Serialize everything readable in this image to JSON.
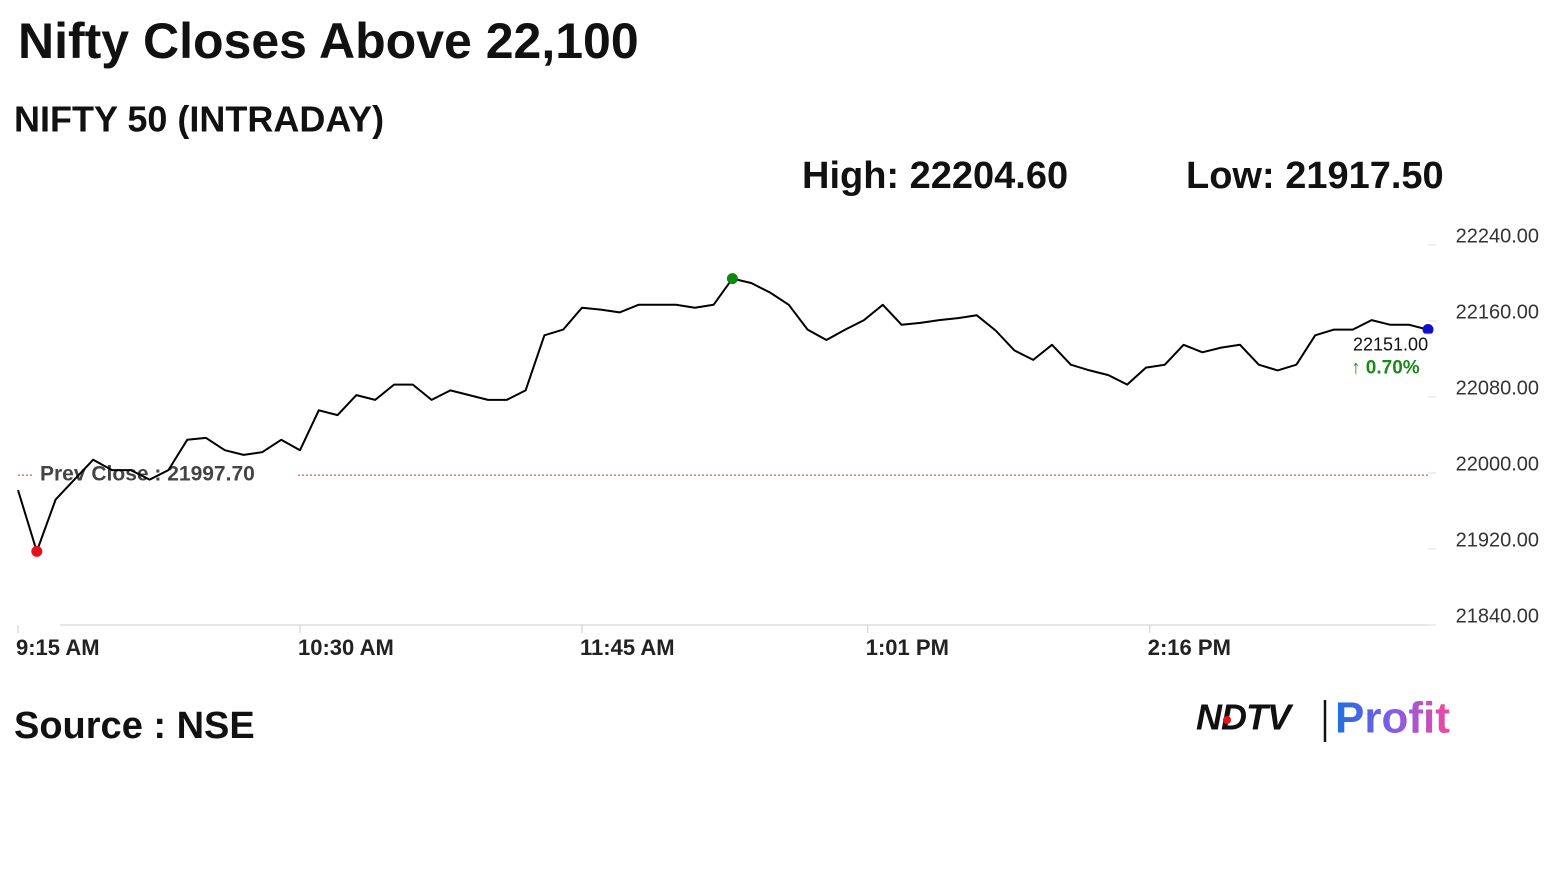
{
  "chart_data": {
    "type": "line",
    "title": "Nifty Closes Above 22,100",
    "subtitle": "NIFTY 50 (INTRADAY)",
    "high_label": "High: 22204.60",
    "low_label": "Low: 21917.50",
    "prev_close": {
      "value": 21997.7,
      "label": "Prev Close : 21997.70"
    },
    "last_label": "22151.00",
    "change_label": "↑ 0.70%",
    "source": "Source : NSE",
    "logo": {
      "brand": "NDTV",
      "product": "Profit"
    },
    "color": "#000000",
    "prev_close_color": "#d62728",
    "high_color": "#0a8a0a",
    "low_color": "#e8101a",
    "last_color": "#1010c8",
    "ylim": [
      21840,
      22240
    ],
    "yticks": [
      {
        "value": 21840,
        "label": "21840.00"
      },
      {
        "value": 21920,
        "label": "21920.00"
      },
      {
        "value": 22000,
        "label": "22000.00"
      },
      {
        "value": 22080,
        "label": "22080.00"
      },
      {
        "value": 22160,
        "label": "22160.00"
      },
      {
        "value": 22240,
        "label": "22240.00"
      }
    ],
    "xlim": [
      "9:15 AM",
      "3:30 PM"
    ],
    "xticks": [
      "9:15 AM",
      "10:30 AM",
      "11:45 AM",
      "1:01 PM",
      "2:16 PM"
    ],
    "x": [
      "9:15 AM",
      "9:20 AM",
      "9:25 AM",
      "9:30 AM",
      "9:35 AM",
      "9:40 AM",
      "9:45 AM",
      "9:50 AM",
      "9:55 AM",
      "10:00 AM",
      "10:05 AM",
      "10:10 AM",
      "10:15 AM",
      "10:20 AM",
      "10:25 AM",
      "10:30 AM",
      "10:35 AM",
      "10:40 AM",
      "10:45 AM",
      "10:50 AM",
      "10:55 AM",
      "11:00 AM",
      "11:05 AM",
      "11:10 AM",
      "11:15 AM",
      "11:20 AM",
      "11:25 AM",
      "11:30 AM",
      "11:35 AM",
      "11:40 AM",
      "11:45 AM",
      "11:50 AM",
      "11:55 AM",
      "12:00 PM",
      "12:05 PM",
      "12:10 PM",
      "12:15 PM",
      "12:20 PM",
      "12:25 PM",
      "12:30 PM",
      "12:35 PM",
      "12:40 PM",
      "12:45 PM",
      "12:50 PM",
      "12:55 PM",
      "1:00 PM",
      "1:05 PM",
      "1:10 PM",
      "1:15 PM",
      "1:20 PM",
      "1:25 PM",
      "1:30 PM",
      "1:35 PM",
      "1:40 PM",
      "1:45 PM",
      "1:50 PM",
      "1:55 PM",
      "2:00 PM",
      "2:05 PM",
      "2:10 PM",
      "2:15 PM",
      "2:20 PM",
      "2:25 PM",
      "2:30 PM",
      "2:35 PM",
      "2:40 PM",
      "2:45 PM",
      "2:50 PM",
      "2:55 PM",
      "3:00 PM",
      "3:05 PM",
      "3:10 PM",
      "3:15 PM",
      "3:20 PM",
      "3:25 PM",
      "3:30 PM"
    ],
    "values": [
      21982,
      21917.5,
      21972,
      21993,
      22014,
      22003,
      22003,
      21993,
      22003,
      22035,
      22037,
      22024,
      22019,
      22022,
      22035,
      22024,
      22066,
      22061,
      22082,
      22077,
      22093,
      22093,
      22077,
      22087,
      22082,
      22077,
      22077,
      22087,
      22145,
      22151,
      22174,
      22172,
      22169,
      22177,
      22177,
      22177,
      22174,
      22177,
      22204.6,
      22200,
      22190,
      22177,
      22151,
      22140,
      22151,
      22161,
      22177,
      22156,
      22158,
      22161,
      22163,
      22166,
      22150,
      22129,
      22119,
      22135,
      22114,
      22108,
      22103,
      22093,
      22111,
      22114,
      22135,
      22127,
      22132,
      22135,
      22114,
      22108,
      22114,
      22145,
      22151,
      22151,
      22161,
      22156,
      22156,
      22151
    ]
  }
}
